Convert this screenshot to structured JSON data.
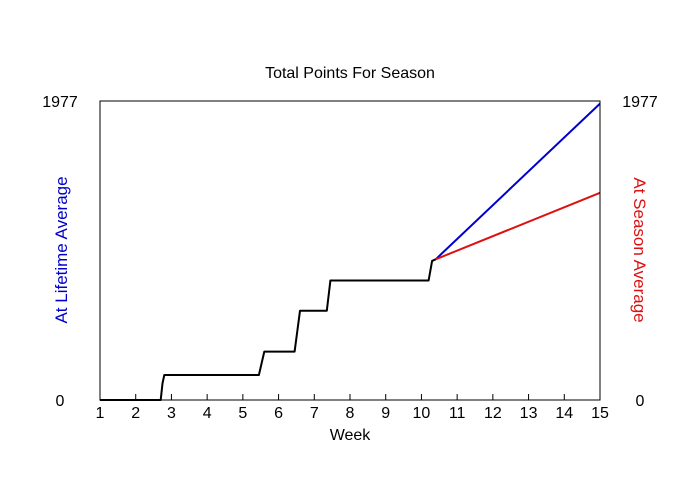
{
  "chart_data": {
    "type": "line",
    "title": "Total Points For Season",
    "xlabel": "Week",
    "ylabel_left": "At Lifetime Average",
    "ylabel_right": "At Season Average",
    "xlim": [
      1,
      15
    ],
    "ylim": [
      0,
      1977
    ],
    "x_ticks": [
      "1",
      "2",
      "3",
      "4",
      "5",
      "6",
      "7",
      "8",
      "9",
      "10",
      "11",
      "12",
      "13",
      "14",
      "15"
    ],
    "y_left_ticks": [
      "0",
      "1977"
    ],
    "y_right_ticks": [
      "0",
      "1977"
    ],
    "grid": false,
    "colors": {
      "actual": "#000000",
      "lifetime": "#0000cc",
      "season": "#dd1111",
      "ylabel_left": "#0000cc",
      "ylabel_right": "#dd1111"
    },
    "series": [
      {
        "key": "actual",
        "x": [
          1,
          2.7,
          2.75,
          2.8,
          5.45,
          5.6,
          6.45,
          6.6,
          7.35,
          7.45,
          10.2,
          10.3,
          10.4
        ],
        "y": [
          0,
          0,
          110,
          165,
          165,
          320,
          320,
          590,
          590,
          790,
          790,
          920,
          930
        ]
      },
      {
        "key": "lifetime",
        "x": [
          10.4,
          15
        ],
        "y": [
          930,
          1960
        ]
      },
      {
        "key": "season",
        "x": [
          10.4,
          15
        ],
        "y": [
          930,
          1370
        ]
      }
    ]
  }
}
